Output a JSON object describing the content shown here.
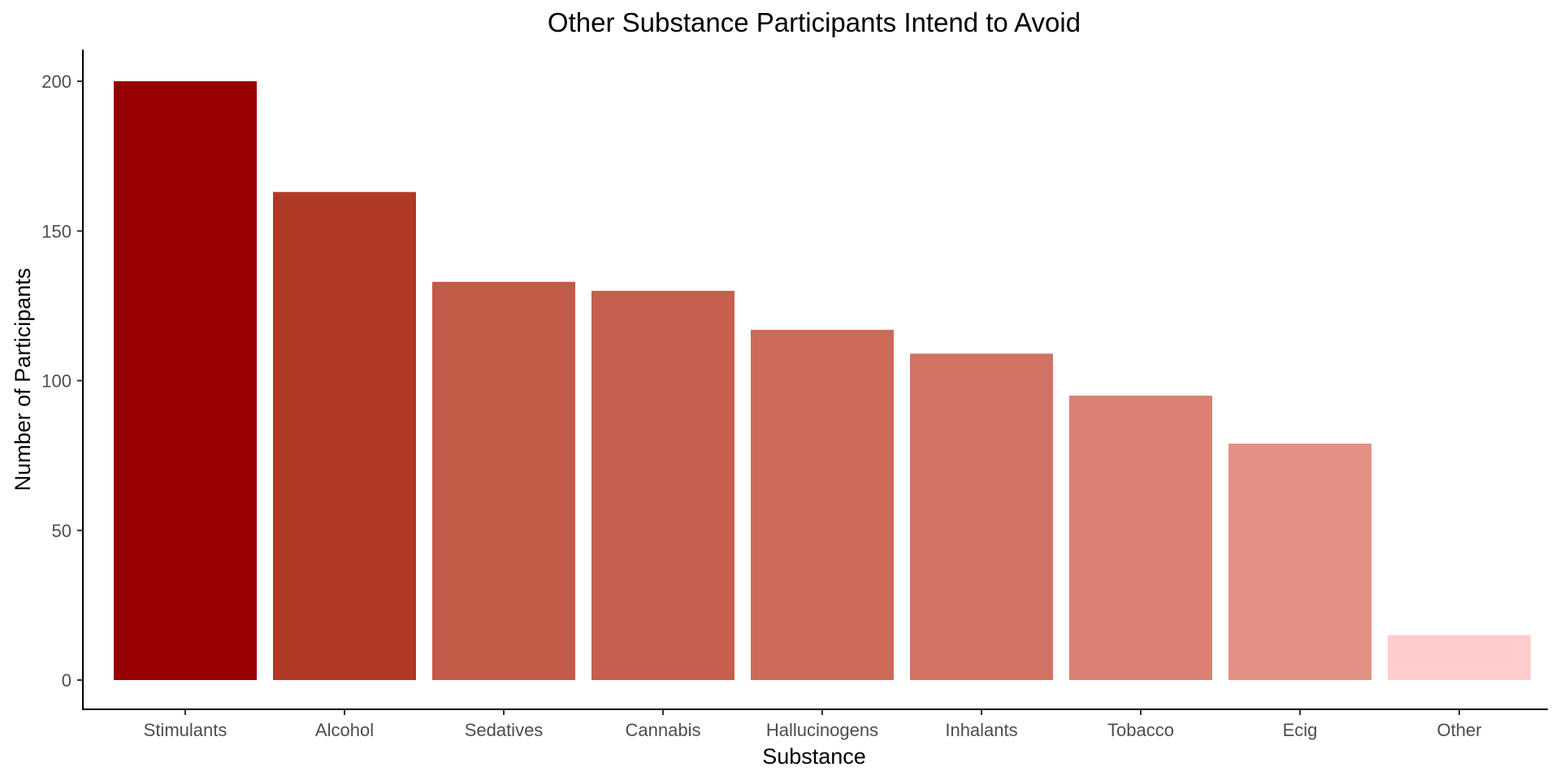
{
  "chart_data": {
    "type": "bar",
    "title": "Other Substance Participants Intend to Avoid",
    "xlabel": "Substance",
    "ylabel": "Number of Participants",
    "categories": [
      "Stimulants",
      "Alcohol",
      "Sedatives",
      "Cannabis",
      "Hallucinogens",
      "Inhalants",
      "Tobacco",
      "Ecig",
      "Other"
    ],
    "values": [
      200,
      163,
      133,
      130,
      117,
      109,
      95,
      79,
      15
    ],
    "bar_colors": [
      "#990000",
      "#B03A27",
      "#C45A48",
      "#C65F4D",
      "#CE6A59",
      "#D27263",
      "#DB8072",
      "#E29084",
      "#FFCCCC"
    ],
    "ylim": [
      0,
      210
    ],
    "yticks": [
      0,
      50,
      100,
      150,
      200
    ],
    "grid": false,
    "legend": "none"
  }
}
